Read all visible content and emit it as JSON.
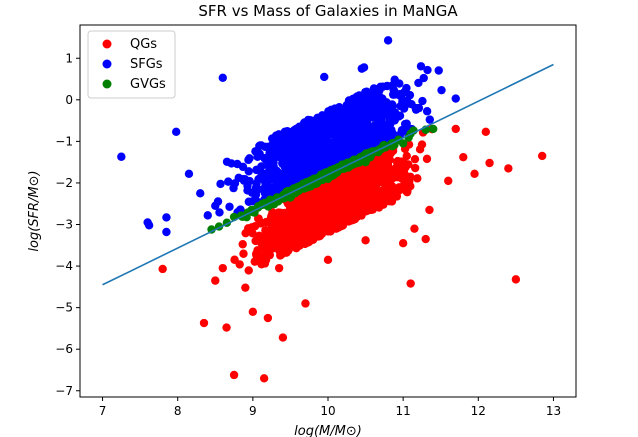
{
  "colors": {
    "qg": "#ff0000",
    "sfg": "#0000ff",
    "gvg": "#008000",
    "fit_line": "#1f77b4",
    "axes": "#000000",
    "background": "#ffffff"
  },
  "chart_data": {
    "type": "scatter",
    "title": "SFR vs Mass of Galaxies in MaNGA",
    "xlabel": "log(M/M⊙)",
    "ylabel": "log(SFR/M⊙)",
    "xlim": [
      6.7,
      13.3
    ],
    "ylim": [
      -7.15,
      1.8
    ],
    "xticks": [
      7,
      8,
      9,
      10,
      11,
      12,
      13
    ],
    "yticks": [
      -7,
      -6,
      -5,
      -4,
      -3,
      -2,
      -1,
      0,
      1
    ],
    "xtick_labels": [
      "7",
      "8",
      "9",
      "10",
      "11",
      "12",
      "13"
    ],
    "ytick_labels": [
      "−7",
      "−6",
      "−5",
      "−4",
      "−3",
      "−2",
      "−1",
      "0",
      "1"
    ],
    "grid": false,
    "legend": {
      "placement": "top-left",
      "entries": [
        "QGs",
        "SFGs",
        "GVGs"
      ]
    },
    "line": {
      "x": [
        7.0,
        13.0
      ],
      "y": [
        -4.45,
        0.85
      ]
    },
    "series": [
      {
        "name": "QGs",
        "color": "#ff0000",
        "band": {
          "x_range": [
            8.6,
            11.5
          ],
          "lower_offset": -1.4,
          "upper_offset": -0.08
        },
        "points": [
          [
            7.8,
            -4.07
          ],
          [
            8.35,
            -5.37
          ],
          [
            8.5,
            -4.35
          ],
          [
            8.65,
            -5.48
          ],
          [
            8.75,
            -6.62
          ],
          [
            9.15,
            -6.7
          ],
          [
            9.4,
            -5.72
          ],
          [
            9.7,
            -4.9
          ],
          [
            9.35,
            -4.05
          ],
          [
            8.9,
            -4.52
          ],
          [
            8.6,
            -4.05
          ],
          [
            11.1,
            -4.42
          ],
          [
            12.5,
            -4.32
          ],
          [
            12.85,
            -1.35
          ],
          [
            12.4,
            -1.65
          ],
          [
            12.1,
            -0.77
          ],
          [
            12.15,
            -1.52
          ],
          [
            11.95,
            -1.78
          ],
          [
            11.7,
            -0.7
          ],
          [
            11.8,
            -1.38
          ],
          [
            11.6,
            -1.95
          ],
          [
            11.3,
            -3.35
          ],
          [
            11.0,
            -3.45
          ],
          [
            10.5,
            -3.38
          ],
          [
            10.0,
            -3.85
          ],
          [
            11.15,
            -3.1
          ],
          [
            11.35,
            -2.65
          ],
          [
            9.0,
            -5.1
          ],
          [
            9.2,
            -5.25
          ]
        ]
      },
      {
        "name": "SFGs",
        "color": "#0000ff",
        "band": {
          "x_range": [
            8.4,
            11.6
          ],
          "lower_offset": 0.08,
          "upper_offset": 1.55
        },
        "points": [
          [
            7.25,
            -1.37
          ],
          [
            7.6,
            -2.95
          ],
          [
            7.62,
            -3.02
          ],
          [
            7.85,
            -2.83
          ],
          [
            7.85,
            -3.18
          ],
          [
            7.98,
            -0.77
          ],
          [
            8.15,
            -1.78
          ],
          [
            8.6,
            0.53
          ],
          [
            10.45,
            0.75
          ],
          [
            10.48,
            0.78
          ],
          [
            10.8,
            1.43
          ],
          [
            11.7,
            0.03
          ],
          [
            9.95,
            0.55
          ],
          [
            8.3,
            -2.25
          ],
          [
            8.4,
            -2.78
          ],
          [
            8.5,
            -2.55
          ]
        ]
      },
      {
        "name": "GVGs",
        "color": "#008000",
        "band": {
          "x_range": [
            8.45,
            11.4
          ],
          "lower_offset": -0.08,
          "upper_offset": 0.08
        },
        "points": [
          [
            8.45,
            -3.12
          ],
          [
            8.55,
            -3.05
          ],
          [
            8.75,
            -2.82
          ],
          [
            9.0,
            -2.7
          ],
          [
            9.5,
            -2.35
          ],
          [
            10.0,
            -1.9
          ],
          [
            10.5,
            -1.5
          ],
          [
            11.0,
            -1.05
          ],
          [
            11.3,
            -0.72
          ],
          [
            11.4,
            -0.7
          ]
        ]
      }
    ]
  }
}
